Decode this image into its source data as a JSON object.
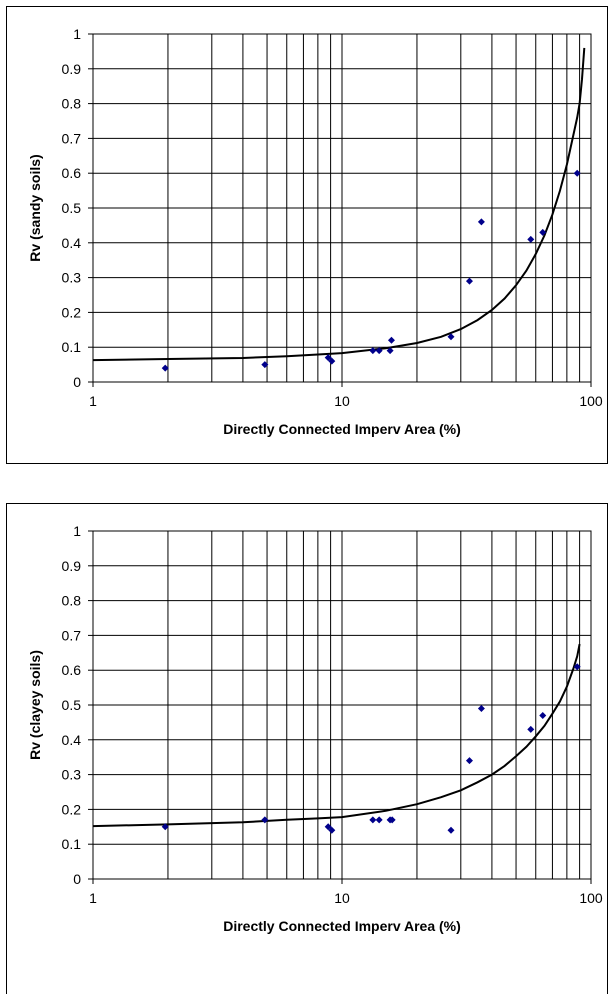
{
  "chart_data": [
    {
      "type": "scatter",
      "xlabel": "Directly Connected Imperv Area (%)",
      "ylabel": "Rv (sandy soils)",
      "xscale": "log",
      "xlim": [
        1,
        100
      ],
      "ylim": [
        0,
        1
      ],
      "grid": true,
      "x_tick_labels": [
        "1",
        "10",
        "100"
      ],
      "y_tick_labels": [
        "0",
        "0.1",
        "0.2",
        "0.3",
        "0.4",
        "0.5",
        "0.6",
        "0.7",
        "0.8",
        "0.9",
        "1"
      ],
      "series": [
        {
          "kind": "points",
          "color": "#00008b",
          "points": [
            [
              1.95,
              0.04
            ],
            [
              4.9,
              0.05
            ],
            [
              8.8,
              0.07
            ],
            [
              9.1,
              0.06
            ],
            [
              13.3,
              0.09
            ],
            [
              14.1,
              0.09
            ],
            [
              15.6,
              0.09
            ],
            [
              15.8,
              0.12
            ],
            [
              27.4,
              0.13
            ],
            [
              32.5,
              0.29
            ],
            [
              36.3,
              0.46
            ],
            [
              57.3,
              0.41
            ],
            [
              64.0,
              0.43
            ],
            [
              88.0,
              0.6
            ]
          ]
        },
        {
          "kind": "line",
          "color": "#000000",
          "points": [
            [
              1,
              0.063
            ],
            [
              2,
              0.066
            ],
            [
              4,
              0.069
            ],
            [
              6,
              0.074
            ],
            [
              8,
              0.079
            ],
            [
              10,
              0.083
            ],
            [
              15,
              0.097
            ],
            [
              20,
              0.112
            ],
            [
              25,
              0.13
            ],
            [
              30,
              0.152
            ],
            [
              35,
              0.178
            ],
            [
              40,
              0.207
            ],
            [
              45,
              0.24
            ],
            [
              50,
              0.278
            ],
            [
              55,
              0.32
            ],
            [
              60,
              0.368
            ],
            [
              65,
              0.421
            ],
            [
              70,
              0.481
            ],
            [
              75,
              0.549
            ],
            [
              80,
              0.625
            ],
            [
              85,
              0.71
            ],
            [
              88,
              0.76
            ],
            [
              90,
              0.8
            ],
            [
              92,
              0.87
            ],
            [
              94,
              0.96
            ]
          ]
        }
      ]
    },
    {
      "type": "scatter",
      "xlabel": "Directly Connected Imperv Area (%)",
      "ylabel": "Rv (clayey soils)",
      "xscale": "log",
      "xlim": [
        1,
        100
      ],
      "ylim": [
        0,
        1
      ],
      "grid": true,
      "x_tick_labels": [
        "1",
        "10",
        "100"
      ],
      "y_tick_labels": [
        "0",
        "0.1",
        "0.2",
        "0.3",
        "0.4",
        "0.5",
        "0.6",
        "0.7",
        "0.8",
        "0.9",
        "1"
      ],
      "series": [
        {
          "kind": "points",
          "color": "#00008b",
          "points": [
            [
              1.95,
              0.15
            ],
            [
              4.9,
              0.17
            ],
            [
              8.8,
              0.15
            ],
            [
              9.1,
              0.14
            ],
            [
              13.3,
              0.17
            ],
            [
              14.1,
              0.17
            ],
            [
              15.6,
              0.17
            ],
            [
              15.9,
              0.17
            ],
            [
              27.4,
              0.14
            ],
            [
              32.5,
              0.34
            ],
            [
              36.3,
              0.49
            ],
            [
              57.3,
              0.43
            ],
            [
              64.0,
              0.47
            ],
            [
              88.0,
              0.61
            ]
          ]
        },
        {
          "kind": "line",
          "color": "#000000",
          "points": [
            [
              1,
              0.152
            ],
            [
              2,
              0.157
            ],
            [
              4,
              0.163
            ],
            [
              6,
              0.17
            ],
            [
              8,
              0.174
            ],
            [
              10,
              0.178
            ],
            [
              15,
              0.196
            ],
            [
              20,
              0.215
            ],
            [
              25,
              0.235
            ],
            [
              30,
              0.255
            ],
            [
              35,
              0.278
            ],
            [
              40,
              0.3
            ],
            [
              45,
              0.325
            ],
            [
              50,
              0.353
            ],
            [
              55,
              0.38
            ],
            [
              60,
              0.41
            ],
            [
              65,
              0.44
            ],
            [
              70,
              0.475
            ],
            [
              75,
              0.51
            ],
            [
              80,
              0.553
            ],
            [
              85,
              0.605
            ],
            [
              88,
              0.64
            ],
            [
              90,
              0.675
            ]
          ]
        }
      ]
    }
  ]
}
